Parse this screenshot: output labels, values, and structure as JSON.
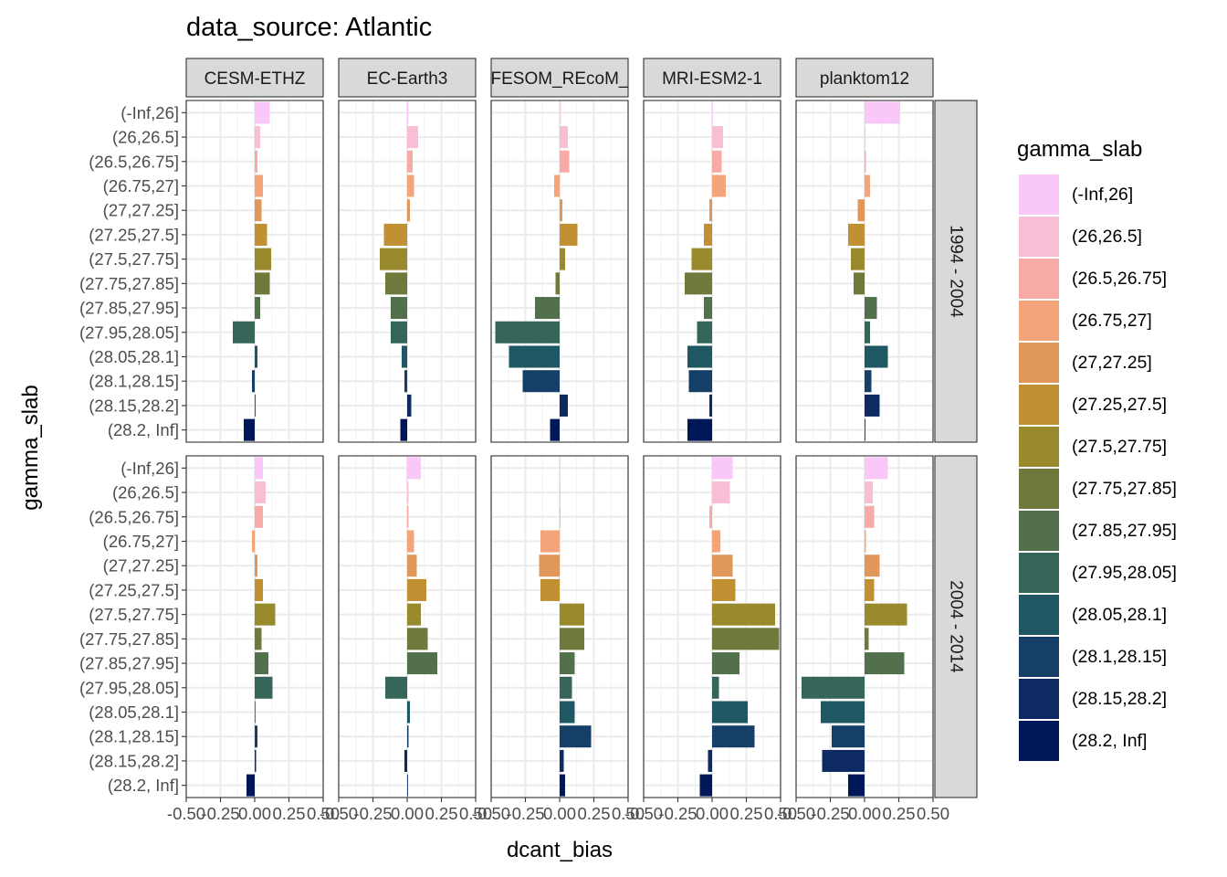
{
  "chart_data": {
    "type": "bar",
    "orientation": "horizontal",
    "title": "data_source: Atlantic",
    "xlabel": "dcant_bias",
    "ylabel": "gamma_slab",
    "xlim": [
      -0.5,
      0.5
    ],
    "x_ticks": [
      "-0.50",
      "-0.25",
      "0.00",
      "0.25",
      "0.50"
    ],
    "grid": true,
    "legend": {
      "title": "gamma_slab",
      "position": "right"
    },
    "models": [
      "CESM-ETHZ",
      "EC-Earth3",
      "FESOM_REcoM_",
      "MRI-ESM2-1",
      "planktom12"
    ],
    "periods": [
      "1994 - 2004",
      "2004 - 2014"
    ],
    "categories": [
      "(-Inf,26]",
      "(26,26.5]",
      "(26.5,26.75]",
      "(26.75,27]",
      "(27,27.25]",
      "(27.25,27.5]",
      "(27.5,27.75]",
      "(27.75,27.85]",
      "(27.85,27.95]",
      "(27.95,28.05]",
      "(28.05,28.1]",
      "(28.1,28.15]",
      "(28.15,28.2]",
      "(28.2, Inf]"
    ],
    "colors": [
      "#f9c8f8",
      "#f8bed6",
      "#f8aba6",
      "#f4a47a",
      "#e0975a",
      "#c09033",
      "#9a8a2e",
      "#6e7a3c",
      "#52704c",
      "#366659",
      "#1f5862",
      "#163f68",
      "#0e2a62",
      "#001858"
    ],
    "values": [
      [
        [
          0.11,
          0.04,
          0.02,
          0.06,
          0.05,
          0.09,
          0.12,
          0.11,
          0.04,
          -0.16,
          0.02,
          -0.02,
          0.005,
          -0.08
        ],
        [
          0.01,
          0.08,
          0.04,
          0.05,
          0.02,
          -0.17,
          -0.2,
          -0.16,
          -0.12,
          -0.12,
          -0.04,
          -0.02,
          0.03,
          -0.05
        ],
        [
          0.01,
          0.06,
          0.07,
          -0.04,
          0.02,
          0.13,
          0.04,
          -0.03,
          -0.18,
          -0.47,
          -0.37,
          -0.27,
          0.06,
          -0.07
        ],
        [
          0.0,
          0.08,
          0.07,
          0.1,
          -0.02,
          -0.06,
          -0.15,
          -0.2,
          -0.06,
          -0.11,
          -0.18,
          -0.17,
          -0.02,
          -0.18
        ],
        [
          0.26,
          0.0,
          0.01,
          0.04,
          -0.05,
          -0.12,
          -0.1,
          -0.08,
          0.09,
          0.04,
          0.17,
          0.05,
          0.11,
          0.0
        ]
      ],
      [
        [
          0.06,
          0.08,
          0.06,
          -0.02,
          0.02,
          0.06,
          0.15,
          0.05,
          0.1,
          0.13,
          0.005,
          0.02,
          0.01,
          -0.06
        ],
        [
          0.1,
          0.01,
          0.01,
          0.05,
          0.07,
          0.14,
          0.1,
          0.15,
          0.22,
          -0.16,
          0.02,
          0.01,
          -0.02,
          0.0
        ],
        [
          0.0,
          0.0,
          0.0,
          -0.14,
          -0.15,
          -0.14,
          0.18,
          0.18,
          0.11,
          0.09,
          0.11,
          0.23,
          0.03,
          0.04
        ],
        [
          0.15,
          0.13,
          -0.02,
          0.06,
          0.15,
          0.17,
          0.46,
          0.49,
          0.2,
          0.05,
          0.26,
          0.31,
          -0.03,
          -0.09
        ],
        [
          0.17,
          0.06,
          0.07,
          0.01,
          0.11,
          0.07,
          0.31,
          0.03,
          0.29,
          -0.46,
          -0.32,
          -0.24,
          -0.31,
          -0.12
        ]
      ]
    ]
  }
}
